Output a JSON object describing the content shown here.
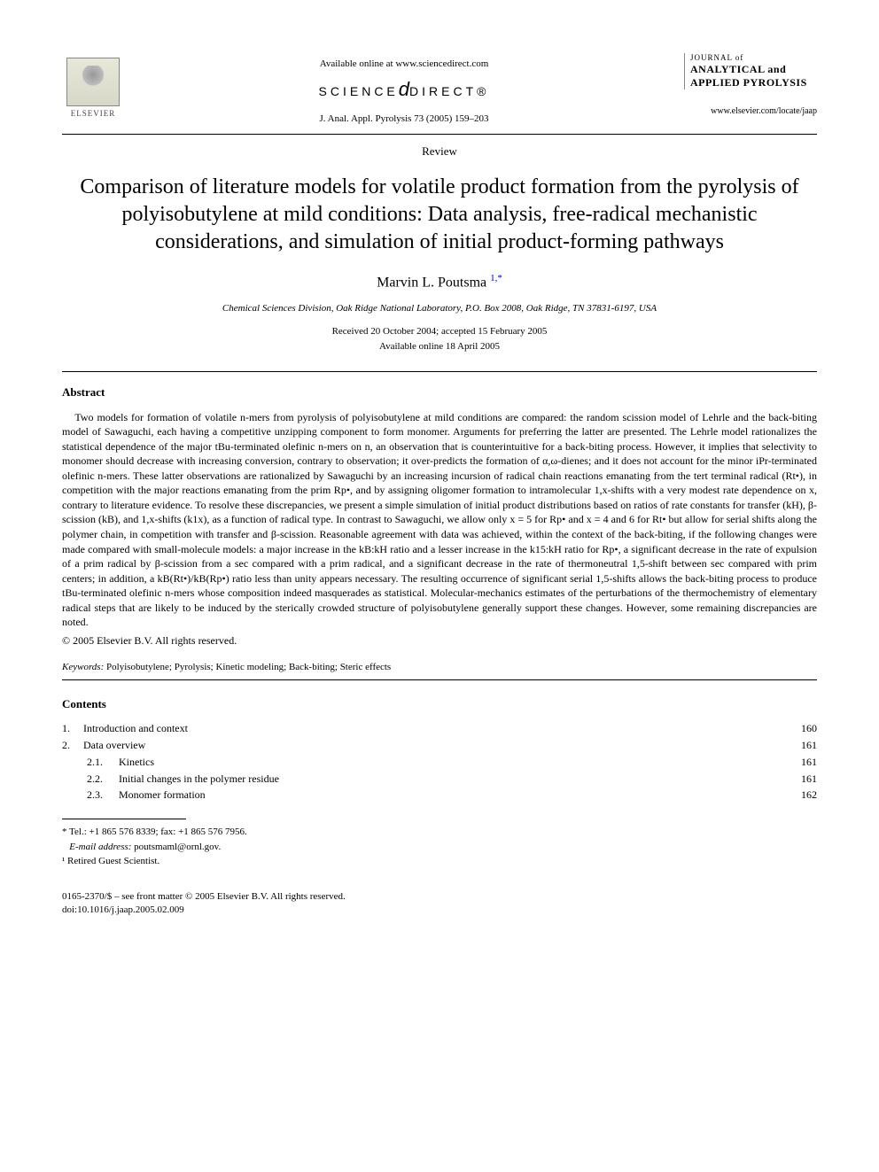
{
  "header": {
    "publisher_name": "ELSEVIER",
    "available_text": "Available online at www.sciencedirect.com",
    "sd_left": "SCIENCE",
    "sd_right": "DIRECT®",
    "citation": "J. Anal. Appl. Pyrolysis 73 (2005) 159–203",
    "journal_of": "JOURNAL of",
    "journal_line1": "ANALYTICAL and",
    "journal_line2": "APPLIED PYROLYSIS",
    "journal_url": "www.elsevier.com/locate/jaap"
  },
  "article": {
    "type": "Review",
    "title": "Comparison of literature models for volatile product formation from the pyrolysis of polyisobutylene at mild conditions: Data analysis, free-radical mechanistic considerations, and simulation of initial product-forming pathways",
    "author": "Marvin L. Poutsma",
    "author_marks": "1,*",
    "affiliation": "Chemical Sciences Division, Oak Ridge National Laboratory, P.O. Box 2008, Oak Ridge, TN 37831-6197, USA",
    "received": "Received 20 October 2004; accepted 15 February 2005",
    "online": "Available online 18 April 2005"
  },
  "abstract": {
    "heading": "Abstract",
    "body": "Two models for formation of volatile n-mers from pyrolysis of polyisobutylene at mild conditions are compared: the random scission model of Lehrle and the back-biting model of Sawaguchi, each having a competitive unzipping component to form monomer. Arguments for preferring the latter are presented. The Lehrle model rationalizes the statistical dependence of the major tBu-terminated olefinic n-mers on n, an observation that is counterintuitive for a back-biting process. However, it implies that selectivity to monomer should decrease with increasing conversion, contrary to observation; it over-predicts the formation of α,ω-dienes; and it does not account for the minor iPr-terminated olefinic n-mers. These latter observations are rationalized by Sawaguchi by an increasing incursion of radical chain reactions emanating from the tert terminal radical (Rt•), in competition with the major reactions emanating from the prim Rp•, and by assigning oligomer formation to intramolecular 1,x-shifts with a very modest rate dependence on x, contrary to literature evidence. To resolve these discrepancies, we present a simple simulation of initial product distributions based on ratios of rate constants for transfer (kH), β-scission (kB), and 1,x-shifts (k1x), as a function of radical type. In contrast to Sawaguchi, we allow only x = 5 for Rp• and x = 4 and 6 for Rt• but allow for serial shifts along the polymer chain, in competition with transfer and β-scission. Reasonable agreement with data was achieved, within the context of the back-biting, if the following changes were made compared with small-molecule models: a major increase in the kB:kH ratio and a lesser increase in the k15:kH ratio for Rp•, a significant decrease in the rate of expulsion of a prim radical by β-scission from a sec compared with a prim radical, and a significant decrease in the rate of thermoneutral 1,5-shift between sec compared with prim centers; in addition, a kB(Rt•)/kB(Rp•) ratio less than unity appears necessary. The resulting occurrence of significant serial 1,5-shifts allows the back-biting process to produce tBu-terminated olefinic n-mers whose composition indeed masquerades as statistical. Molecular-mechanics estimates of the perturbations of the thermochemistry of elementary radical steps that are likely to be induced by the sterically crowded structure of polyisobutylene generally support these changes. However, some remaining discrepancies are noted.",
    "copyright": "© 2005 Elsevier B.V. All rights reserved."
  },
  "keywords": {
    "label": "Keywords:",
    "text": " Polyisobutylene; Pyrolysis; Kinetic modeling; Back-biting; Steric effects"
  },
  "contents": {
    "heading": "Contents",
    "items": [
      {
        "num": "1.",
        "label": "Introduction and context",
        "page": "160",
        "level": 0
      },
      {
        "num": "2.",
        "label": "Data overview",
        "page": "161",
        "level": 0
      },
      {
        "num": "2.1.",
        "label": "Kinetics",
        "page": "161",
        "level": 1
      },
      {
        "num": "2.2.",
        "label": "Initial changes in the polymer residue",
        "page": "161",
        "level": 1
      },
      {
        "num": "2.3.",
        "label": "Monomer formation",
        "page": "162",
        "level": 1
      }
    ]
  },
  "footnotes": {
    "corr": "* Tel.: +1 865 576 8339; fax: +1 865 576 7956.",
    "email_label": "E-mail address:",
    "email": " poutsmaml@ornl.gov.",
    "note1": "¹ Retired Guest Scientist."
  },
  "footer": {
    "line1": "0165-2370/$ – see front matter © 2005 Elsevier B.V. All rights reserved.",
    "line2": "doi:10.1016/j.jaap.2005.02.009"
  }
}
